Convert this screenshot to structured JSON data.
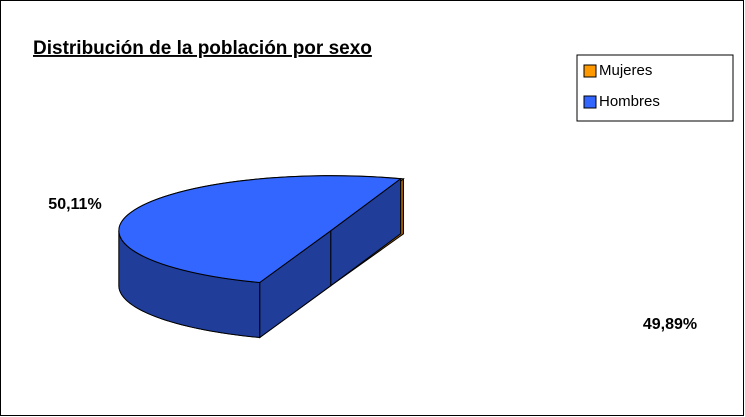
{
  "chart_data": {
    "type": "pie3d",
    "title": "Distribución de la población por sexo",
    "categories": [
      "Mujeres",
      "Hombres"
    ],
    "values": [
      50.11,
      49.89
    ],
    "value_labels": [
      "50,11%",
      "49,89%"
    ],
    "colors": [
      "#ff9900",
      "#3366ff"
    ],
    "legend": "top-right"
  }
}
